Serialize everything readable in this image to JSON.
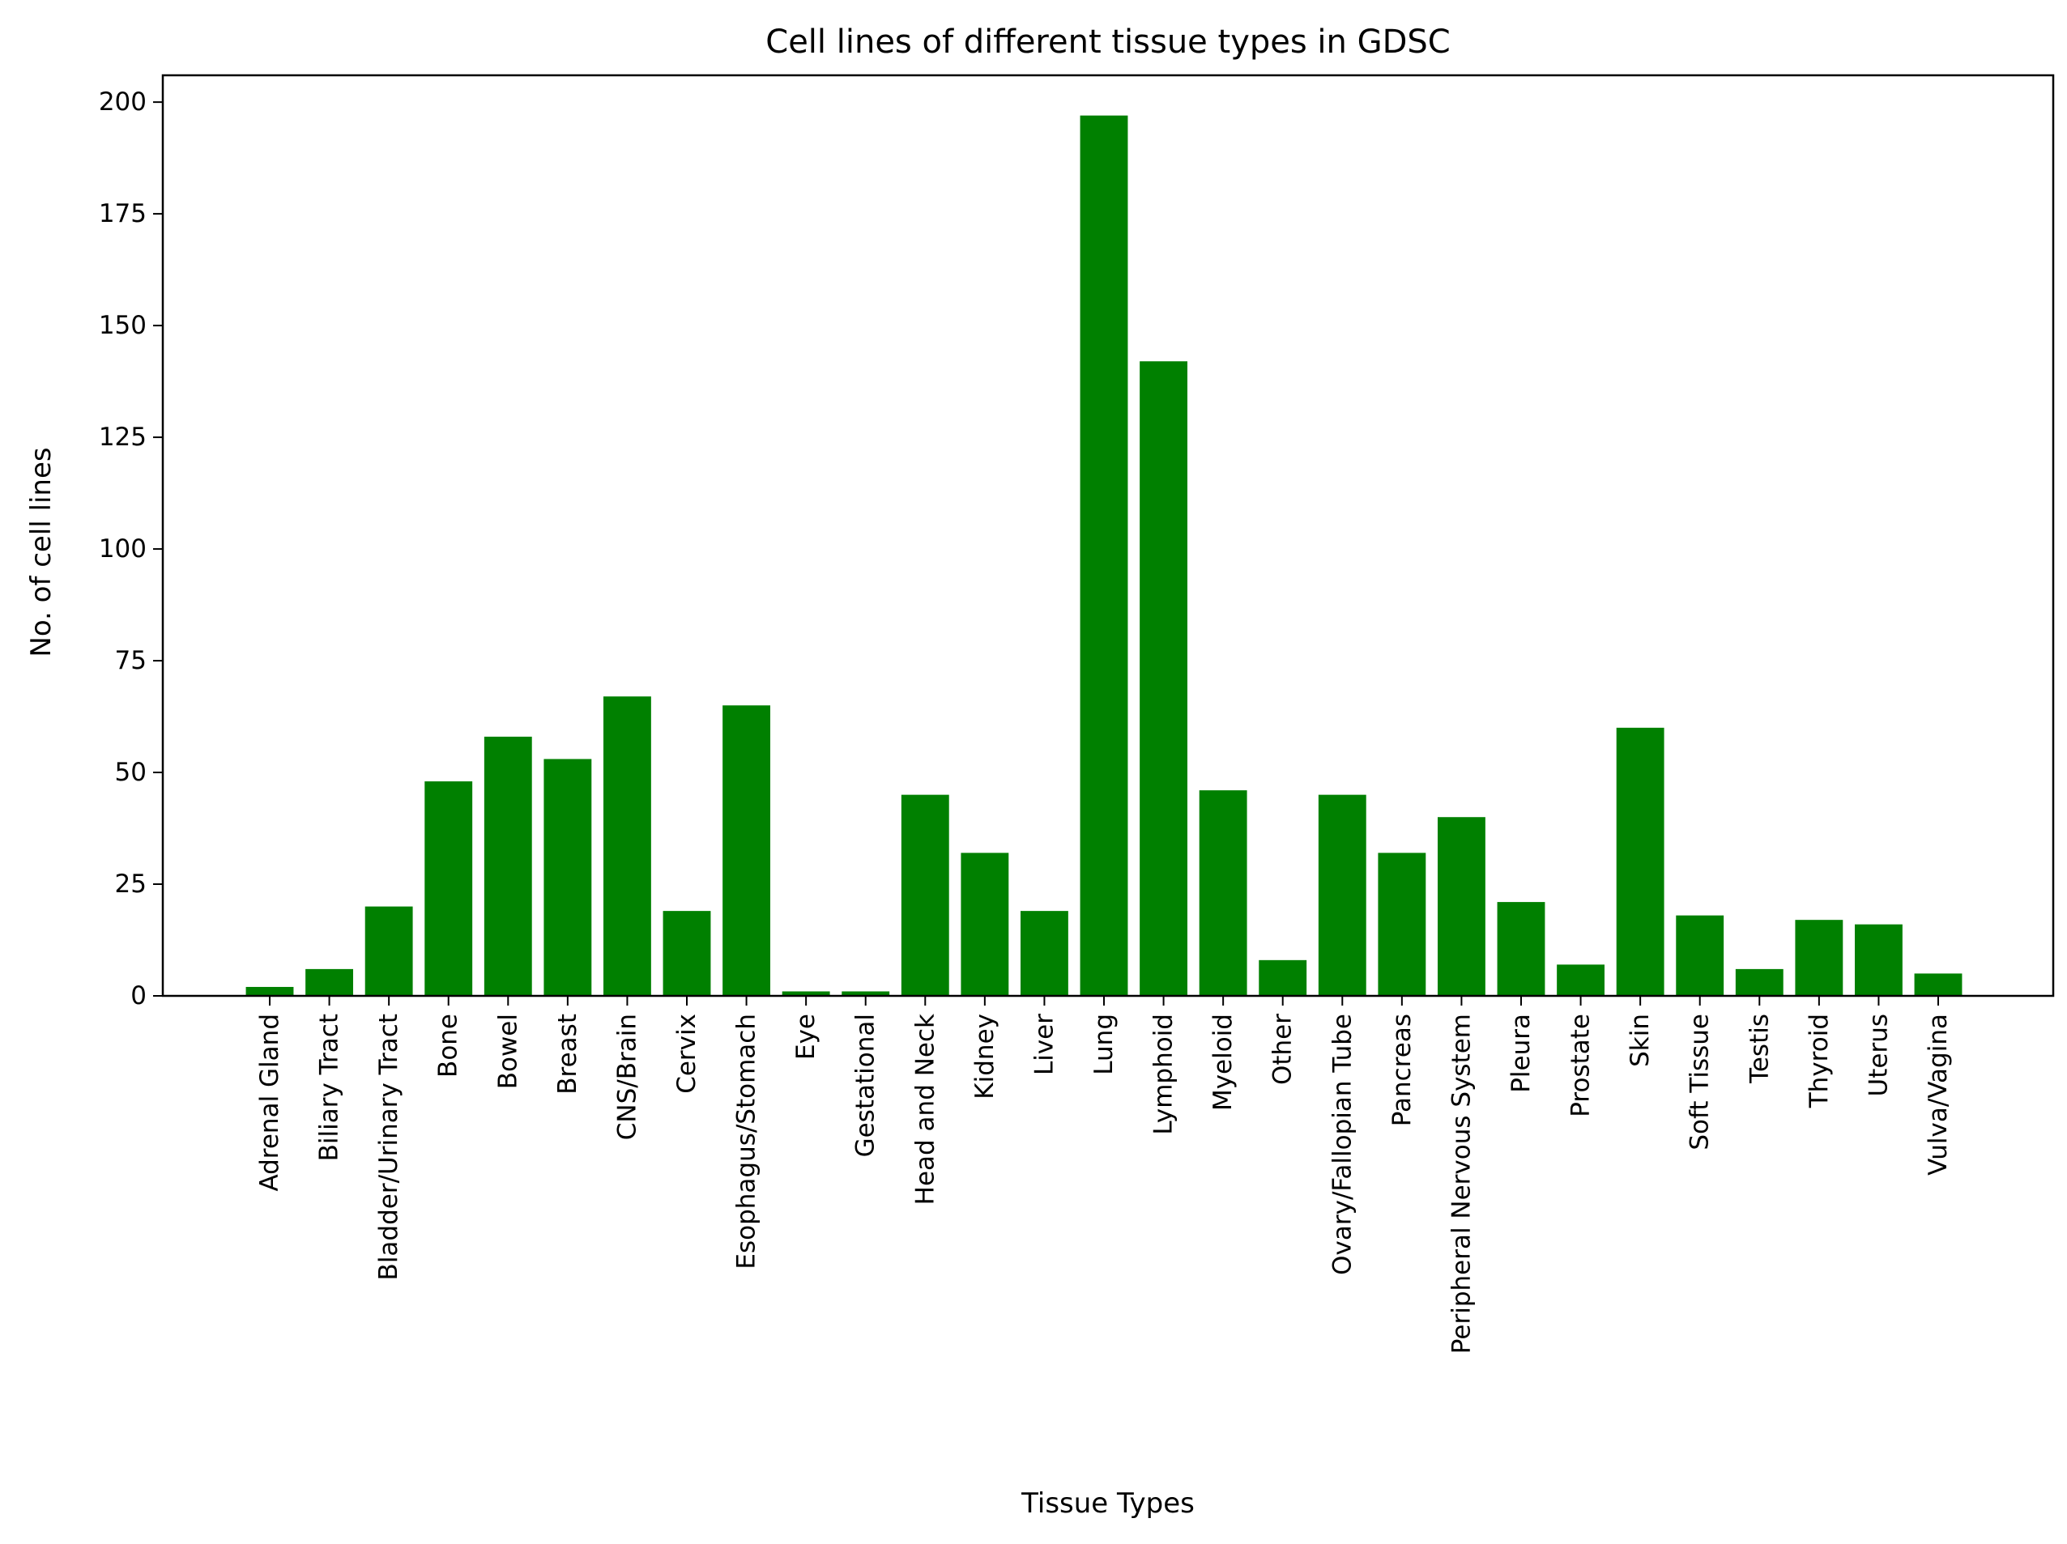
{
  "colors": {
    "bar": "#008000",
    "axis": "#000000",
    "background": "#ffffff"
  },
  "chart_data": {
    "type": "bar",
    "title": "Cell lines of different tissue types in GDSC",
    "xlabel": "Tissue Types",
    "ylabel": "No. of cell lines",
    "ylim": [
      0,
      206
    ],
    "yticks": [
      0,
      25,
      50,
      75,
      100,
      125,
      150,
      175,
      200
    ],
    "grid": false,
    "categories": [
      "Adrenal Gland",
      "Biliary Tract",
      "Bladder/Urinary Tract",
      "Bone",
      "Bowel",
      "Breast",
      "CNS/Brain",
      "Cervix",
      "Esophagus/Stomach",
      "Eye",
      "Gestational",
      "Head and Neck",
      "Kidney",
      "Liver",
      "Lung",
      "Lymphoid",
      "Myeloid",
      "Other",
      "Ovary/Fallopian Tube",
      "Pancreas",
      "Peripheral Nervous System",
      "Pleura",
      "Prostate",
      "Skin",
      "Soft Tissue",
      "Testis",
      "Thyroid",
      "Uterus",
      "Vulva/Vagina"
    ],
    "values": [
      2,
      6,
      20,
      48,
      58,
      53,
      67,
      19,
      65,
      1,
      1,
      45,
      32,
      19,
      197,
      142,
      46,
      8,
      45,
      32,
      40,
      21,
      7,
      60,
      18,
      6,
      17,
      16,
      5
    ]
  }
}
